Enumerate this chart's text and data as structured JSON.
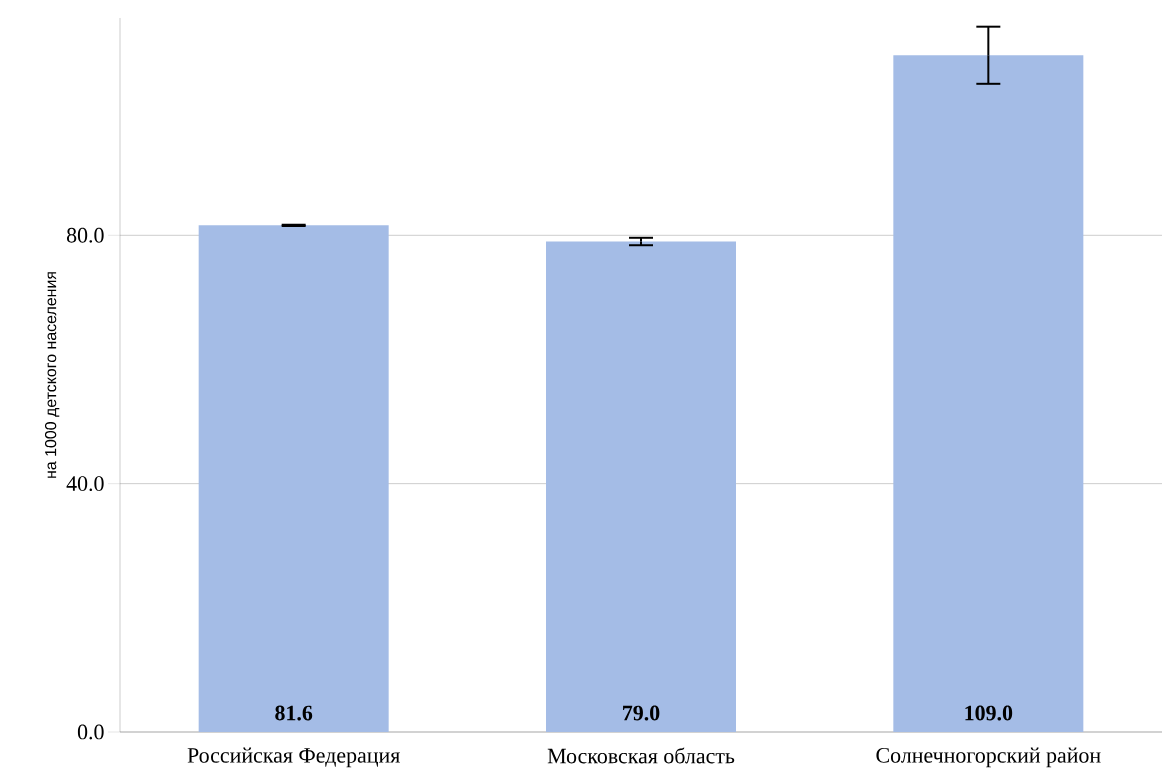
{
  "chart_data": {
    "type": "bar",
    "ylabel": "на 1000 детского населения",
    "categories": [
      "Российская Федерация",
      "Московская область",
      "Солнечногорский район"
    ],
    "values": [
      81.6,
      79.0,
      109.0
    ],
    "value_labels": [
      "81.6",
      "79.0",
      "109.0"
    ],
    "errors": [
      0.1,
      0.6,
      4.6
    ],
    "color": "#a4bce6",
    "ylim": [
      0,
      115
    ],
    "yticks": [
      {
        "value": 0,
        "label": "0.0"
      },
      {
        "value": 40,
        "label": "40.0"
      },
      {
        "value": 80,
        "label": "80.0"
      }
    ],
    "grid": "y"
  }
}
